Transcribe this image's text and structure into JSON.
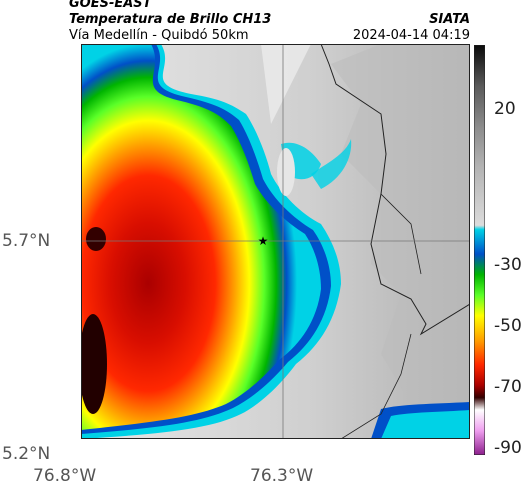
{
  "header": {
    "satellite": "GOES-EAST",
    "product": "Temperatura de Brillo CH13",
    "region": "Vía Medellín - Quibdó 50km",
    "organization": "SIATA",
    "timestamp": "2024-04-14 04:19"
  },
  "axes": {
    "lat_labels": [
      "5.7°N",
      "5.2°N"
    ],
    "lon_labels": [
      "76.8°W",
      "76.3°W"
    ]
  },
  "colorbar": {
    "tick_labels": [
      "20",
      "-30",
      "-50",
      "-70",
      "-90"
    ],
    "stops": [
      {
        "value": 40,
        "color": "#0a0a0a"
      },
      {
        "value": 30,
        "color": "#5a5a5a"
      },
      {
        "value": 20,
        "color": "#8c8c8c"
      },
      {
        "value": 10,
        "color": "#b4b4b4"
      },
      {
        "value": -15,
        "color": "#dcdcdc"
      },
      {
        "value": -20,
        "color": "#00d2e6"
      },
      {
        "value": -27,
        "color": "#0050c8"
      },
      {
        "value": -33,
        "color": "#00b400"
      },
      {
        "value": -38,
        "color": "#5aff28"
      },
      {
        "value": -45,
        "color": "#ffff00"
      },
      {
        "value": -52,
        "color": "#ffa000"
      },
      {
        "value": -58,
        "color": "#ff2800"
      },
      {
        "value": -65,
        "color": "#aa0000"
      },
      {
        "value": -72,
        "color": "#330000"
      },
      {
        "value": -77,
        "color": "#ffffff"
      },
      {
        "value": -82,
        "color": "#f0a0f0"
      },
      {
        "value": -90,
        "color": "#8c1e8c"
      }
    ]
  },
  "marker": {
    "name": "location-star",
    "symbol": "★"
  },
  "colors": {
    "cloud_free": "#c8c8c8",
    "grid": "#777777",
    "border": "#222222"
  }
}
